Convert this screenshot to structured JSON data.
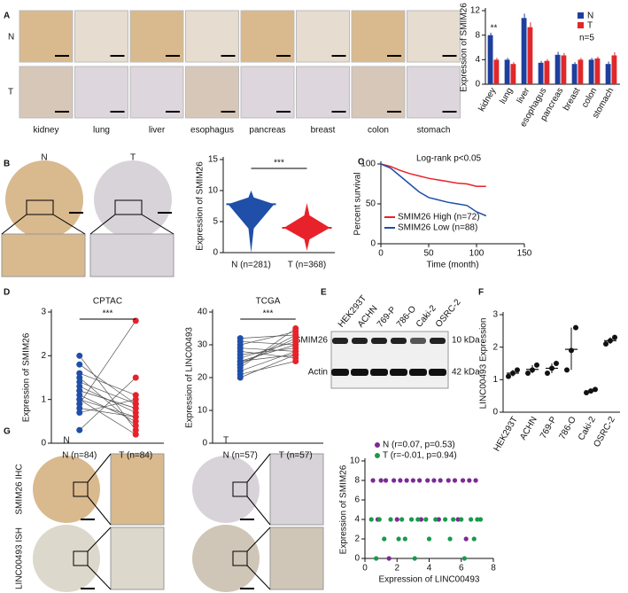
{
  "panels": [
    "A",
    "B",
    "C",
    "D",
    "E",
    "F",
    "G"
  ],
  "images": {
    "A": {
      "rows": [
        "N",
        "T"
      ],
      "tissues": [
        "kidney",
        "lung",
        "liver",
        "esophagus",
        "pancreas",
        "breast",
        "colon",
        "stomach"
      ]
    },
    "B": {
      "columns": [
        "N",
        "T"
      ]
    },
    "E": {
      "lanes": [
        "HEK293T",
        "ACHN",
        "769-P",
        "786-O",
        "Caki-2",
        "OSRC-2"
      ],
      "bands": [
        "SMIM26",
        "Actin"
      ],
      "sizes": [
        "10 kDa",
        "42 kDa"
      ]
    },
    "G": {
      "columns": [
        "N",
        "T"
      ],
      "rows": [
        "SMIM26 IHC",
        "LINC00493 ISH"
      ]
    }
  },
  "chart_data": [
    {
      "type": "bar",
      "ylabel": "Expression of SMIM26",
      "categories": [
        "kidney",
        "lung",
        "liver",
        "esophagus",
        "pancreas",
        "breast",
        "colon",
        "stomach"
      ],
      "series": [
        {
          "name": "N",
          "color": "#1f3f9e",
          "values": [
            8,
            4,
            10.8,
            3.5,
            4.8,
            3.3,
            4,
            3.3
          ],
          "errors": [
            0.4,
            0.3,
            0.7,
            0.3,
            0.5,
            0.3,
            0.3,
            0.4
          ]
        },
        {
          "name": "T",
          "color": "#e0282a",
          "values": [
            4,
            3.3,
            9.3,
            3.8,
            4.7,
            4,
            4.2,
            4.7
          ],
          "errors": [
            0.3,
            0.3,
            0.8,
            0.3,
            0.4,
            0.3,
            0.3,
            0.5
          ]
        }
      ],
      "ylim": [
        0,
        12
      ],
      "yticks": [
        0,
        4,
        8,
        12
      ],
      "annotation": "**",
      "note": "n=5"
    },
    {
      "type": "violin",
      "ylabel": "Expression of SMIM26",
      "categories": [
        "N (n=281)",
        "T (n=368)"
      ],
      "colors": [
        "#1f4fa8",
        "#e8222a"
      ],
      "medians": [
        7.8,
        4
      ],
      "mins": [
        0,
        0.3
      ],
      "maxs": [
        10,
        8
      ],
      "ylim": [
        0,
        15
      ],
      "yticks": [
        0,
        5,
        10,
        15
      ],
      "annotation": "***"
    },
    {
      "type": "line",
      "title": "Log-rank p<0.05",
      "xlabel": "Time (month)",
      "ylabel": "Percent survival",
      "x": [
        0,
        10,
        20,
        30,
        40,
        50,
        60,
        70,
        80,
        90,
        100,
        110
      ],
      "series": [
        {
          "name": "SMIM26 High (n=72)",
          "color": "#e8222a",
          "values": [
            100,
            97,
            92,
            88,
            85,
            82,
            80,
            78,
            76,
            75,
            72,
            72
          ]
        },
        {
          "name": "SMIM26 Low (n=88)",
          "color": "#1f4fa8",
          "values": [
            100,
            95,
            85,
            75,
            65,
            58,
            55,
            52,
            50,
            48,
            40,
            35
          ]
        }
      ],
      "xlim": [
        0,
        150
      ],
      "xticks": [
        0,
        50,
        100,
        150
      ],
      "ylim": [
        0,
        100
      ],
      "yticks": [
        0,
        50,
        100
      ]
    },
    {
      "type": "paired",
      "title": "CPTAC",
      "ylabel": "Expression of SMIM26",
      "categories": [
        "N (n=84)",
        "T (n=84)"
      ],
      "colors": [
        "#1f4fa8",
        "#e8222a"
      ],
      "values": [
        [
          1.0,
          1.2,
          0.9,
          1.5,
          1.8,
          0.3,
          1.1,
          1.3,
          0.7,
          2.0,
          1.0,
          1.4,
          0.8,
          1.6,
          1.2
        ],
        [
          0.6,
          0.8,
          2.8,
          0.4,
          0.9,
          1.5,
          0.5,
          0.7,
          1.0,
          0.3,
          0.2,
          0.9,
          0.6,
          1.1,
          0.8
        ]
      ],
      "ylim": [
        0,
        3
      ],
      "yticks": [
        0,
        1,
        2,
        3
      ],
      "annotation": "***"
    },
    {
      "type": "paired",
      "title": "TCGA",
      "ylabel": "Expression of LINC00493",
      "categories": [
        "N (n=57)",
        "T (n=57)"
      ],
      "colors": [
        "#1f4fa8",
        "#e8222a"
      ],
      "values": [
        [
          22,
          25,
          28,
          30,
          20,
          24,
          27,
          32,
          21,
          26,
          23,
          29,
          31,
          25,
          24
        ],
        [
          28,
          30,
          26,
          34,
          27,
          32,
          29,
          33,
          25,
          31,
          35,
          28,
          30,
          27,
          33
        ]
      ],
      "ylim": [
        0,
        40
      ],
      "yticks": [
        0,
        10,
        20,
        30,
        40
      ],
      "annotation": "***"
    },
    {
      "type": "dot",
      "ylabel": "LINC00493 Expression",
      "categories": [
        "HEK293T",
        "ACHN",
        "769-P",
        "786-O",
        "Caki-2",
        "OSRC-2"
      ],
      "color": "#111111",
      "values": [
        [
          1.1,
          1.2,
          1.3
        ],
        [
          1.2,
          1.3,
          1.45
        ],
        [
          1.2,
          1.35,
          1.5
        ],
        [
          1.3,
          1.9,
          2.6
        ],
        [
          0.6,
          0.65,
          0.7
        ],
        [
          2.1,
          2.2,
          2.3
        ]
      ],
      "ylim": [
        0,
        3
      ],
      "yticks": [
        0,
        1,
        2,
        3
      ]
    },
    {
      "type": "scatter",
      "xlabel": "Expression of LINC00493",
      "ylabel": "Expression of SMIM26",
      "series": [
        {
          "name": "N (r=0.07, p=0.53)",
          "color": "#7b2a93",
          "x": [
            0.5,
            1.0,
            1.3,
            1.8,
            2.2,
            2.6,
            3.0,
            3.4,
            3.9,
            4.3,
            4.7,
            5.2,
            5.6,
            6.1,
            6.5,
            6.9,
            0.8,
            2.0,
            3.5,
            4.6,
            5.8,
            1.5,
            6.3
          ],
          "values": [
            8,
            8,
            8,
            8,
            8,
            8,
            8,
            8,
            8,
            8,
            8,
            8,
            8,
            8,
            8,
            8,
            4,
            4,
            4,
            4,
            4,
            0,
            2
          ]
        },
        {
          "name": "T (r=-0.01, p=0.94)",
          "color": "#1a9a4a",
          "x": [
            0.4,
            0.9,
            1.6,
            2.3,
            2.9,
            3.3,
            3.8,
            4.4,
            5.0,
            5.5,
            6.0,
            6.6,
            7.0,
            1.2,
            2.5,
            4.0,
            5.3,
            6.8,
            0.7,
            3.1,
            6.2,
            2.1,
            7.2
          ],
          "values": [
            4,
            4,
            4,
            4,
            4,
            4,
            4,
            4,
            4,
            4,
            4,
            4,
            4,
            2,
            2,
            2,
            2,
            2,
            0,
            0,
            0,
            2,
            4
          ]
        }
      ],
      "xlim": [
        0,
        8
      ],
      "xticks": [
        0,
        2,
        4,
        6,
        8
      ],
      "ylim": [
        0,
        10
      ],
      "yticks": [
        0,
        2,
        4,
        6,
        8,
        10
      ]
    }
  ]
}
